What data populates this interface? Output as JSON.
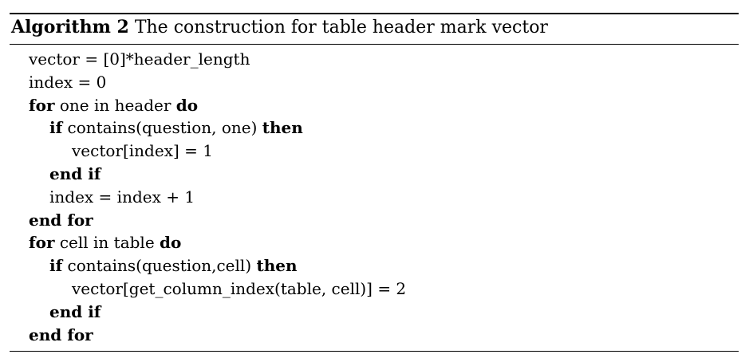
{
  "algorithm": {
    "label": "Algorithm 2",
    "title": "The construction for table header mark vector",
    "lines": [
      {
        "indent": 0,
        "parts": [
          {
            "t": "vector = [0]*header_length",
            "kw": false
          }
        ]
      },
      {
        "indent": 0,
        "parts": [
          {
            "t": "index = 0",
            "kw": false
          }
        ]
      },
      {
        "indent": 0,
        "parts": [
          {
            "t": "for",
            "kw": true
          },
          {
            "t": " one in header ",
            "kw": false
          },
          {
            "t": "do",
            "kw": true
          }
        ]
      },
      {
        "indent": 1,
        "parts": [
          {
            "t": "if",
            "kw": true
          },
          {
            "t": " contains(question, one) ",
            "kw": false
          },
          {
            "t": "then",
            "kw": true
          }
        ]
      },
      {
        "indent": 2,
        "parts": [
          {
            "t": "vector[index] = 1",
            "kw": false
          }
        ]
      },
      {
        "indent": 1,
        "parts": [
          {
            "t": "end if",
            "kw": true
          }
        ]
      },
      {
        "indent": 1,
        "parts": [
          {
            "t": "index = index + 1",
            "kw": false
          }
        ]
      },
      {
        "indent": 0,
        "parts": [
          {
            "t": "end for",
            "kw": true
          }
        ]
      },
      {
        "indent": 0,
        "parts": [
          {
            "t": "for",
            "kw": true
          },
          {
            "t": " cell in table ",
            "kw": false
          },
          {
            "t": "do",
            "kw": true
          }
        ]
      },
      {
        "indent": 1,
        "parts": [
          {
            "t": "if",
            "kw": true
          },
          {
            "t": " contains(question,cell) ",
            "kw": false
          },
          {
            "t": "then",
            "kw": true
          }
        ]
      },
      {
        "indent": 2,
        "parts": [
          {
            "t": "vector[get_column_index(table, cell)] = 2",
            "kw": false
          }
        ]
      },
      {
        "indent": 1,
        "parts": [
          {
            "t": "end if",
            "kw": true
          }
        ]
      },
      {
        "indent": 0,
        "parts": [
          {
            "t": "end for",
            "kw": true
          }
        ]
      }
    ]
  }
}
